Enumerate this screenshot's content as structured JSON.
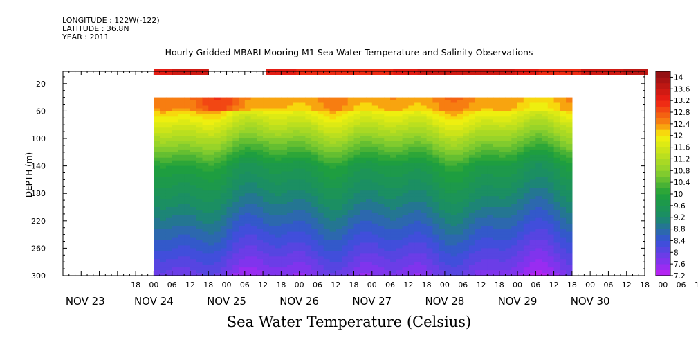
{
  "header": {
    "longitude": "LONGITUDE : 122W(-122)",
    "latitude": "LATITUDE : 36.8N",
    "year": "YEAR : 2011"
  },
  "chart_data": {
    "type": "heatmap",
    "title": "Hourly Gridded MBARI Mooring M1 Sea Water Temperature and Salinity Observations",
    "caption": "Sea Water Temperature (Celsius)",
    "ylabel": "DEPTH (m)",
    "y_reversed": true,
    "ylim": [
      300,
      2
    ],
    "y_ticks": [
      20,
      60,
      100,
      140,
      180,
      220,
      260,
      300
    ],
    "x_hour_ticks": [
      "18",
      "00",
      "06",
      "12",
      "18",
      "00",
      "06",
      "12",
      "18",
      "00",
      "06",
      "12",
      "18",
      "00",
      "06",
      "12",
      "18",
      "00",
      "06",
      "12",
      "18",
      "00",
      "06",
      "12",
      "18",
      "00",
      "06",
      "12",
      "18",
      "00",
      "06",
      "12",
      "18",
      "00",
      "06",
      "12"
    ],
    "x_day_labels": [
      "NOV 23",
      "NOV 24",
      "NOV 25",
      "NOV 26",
      "NOV 27",
      "NOV 28",
      "NOV 29",
      "NOV 30"
    ],
    "data_time_range_hours_from_nov24_00": [
      0,
      138
    ],
    "surface_sensor_depth_m": 3,
    "surface_gap_hours_from_nov24_00": [
      17,
      37
    ],
    "profile_depth_range_m": [
      40,
      300
    ],
    "colorbar": {
      "ticks": [
        "14",
        "13.6",
        "13.2",
        "12.8",
        "12.4",
        "12",
        "11.6",
        "11.2",
        "10.8",
        "10.4",
        "10",
        "9.6",
        "9.2",
        "8.8",
        "8.4",
        "8",
        "7.6",
        "7.2"
      ],
      "min": 7.2,
      "max": 14.2,
      "step": 0.2
    },
    "colors": {
      "c14": "#8b0e12",
      "c13_2": "#ee1f14",
      "c12_4": "#f88a10",
      "c12": "#f7f20c",
      "c10_8": "#8fd12c",
      "c10": "#1fa03a",
      "c9_2": "#1a8c68",
      "c8_4": "#3652d8",
      "c7_6": "#8b30f0",
      "c7_2": "#c21ff2"
    }
  }
}
